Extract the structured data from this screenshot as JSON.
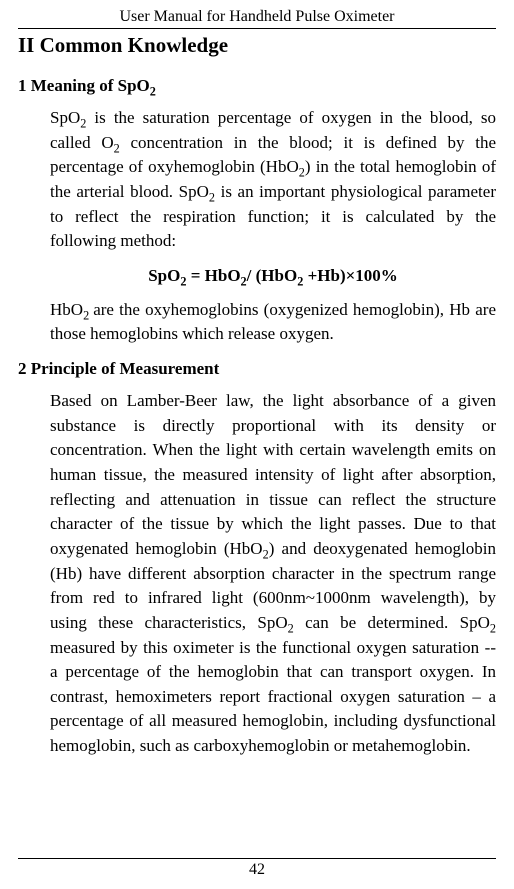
{
  "colors": {
    "text": "#000000",
    "background": "#ffffff",
    "rule": "#000000"
  },
  "typography": {
    "family": "Times New Roman",
    "body_size_pt": 12,
    "h1_size_pt": 16,
    "h2_size_pt": 13,
    "header_size_pt": 12
  },
  "header": {
    "running_title": "User Manual for Handheld Pulse Oximeter"
  },
  "section": {
    "title": "II Common Knowledge",
    "sub1": {
      "heading_pre": "1 Meaning of SpO",
      "heading_sub": "2",
      "para1_parts": [
        "SpO",
        "2",
        " is the saturation percentage of oxygen in the blood, so called O",
        "2",
        " concentration in the blood; it is defined by the percentage of oxyhemoglobin (HbO",
        "2",
        ") in the total hemoglobin of the arterial blood. SpO",
        "2",
        " is an important physiological parameter to reflect the respiration function; it is calculated by the following method:"
      ],
      "formula_parts": [
        "SpO",
        "2",
        " = HbO",
        "2",
        "/ (HbO",
        "2",
        " +Hb)×100%"
      ],
      "para2_parts": [
        "HbO",
        "2 ",
        "are the oxyhemoglobins (oxygenized hemoglobin), Hb are those hemoglobins which release oxygen."
      ]
    },
    "sub2": {
      "heading": "2 Principle of Measurement",
      "para_parts": [
        "Based on Lamber-Beer law, the light absorbance of a given substance is directly proportional with its density or concentration. When the light with certain wavelength emits on human tissue, the measured intensity of light after absorption, reflecting and attenuation in tissue can reflect the structure character of the tissue by which the light passes. Due to that oxygenated hemoglobin (HbO",
        "2",
        ") and deoxygenated hemoglobin (Hb) have different absorption character in the spectrum range from red to infrared light (600nm~1000nm wavelength), by using these characteristics, SpO",
        "2",
        " can be determined. SpO",
        "2",
        " measured by this oximeter is the functional oxygen saturation -- a percentage of the hemoglobin that can transport oxygen. In contrast, hemoximeters report fractional oxygen saturation – a percentage of all measured hemoglobin, including dysfunctional hemoglobin, such as carboxyhemoglobin or metahemoglobin."
      ]
    }
  },
  "footer": {
    "page_number": "42"
  }
}
